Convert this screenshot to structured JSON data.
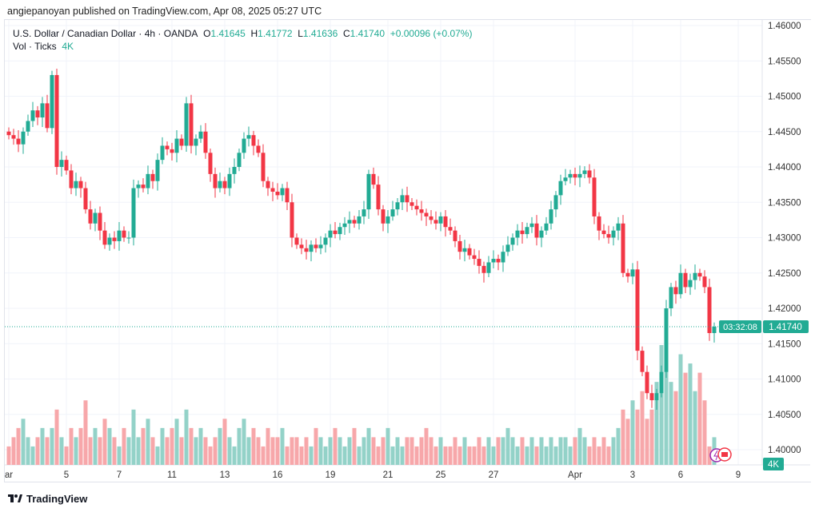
{
  "published": "angiepanoyan published on TradingView.com, Apr 08, 2025 05:27 UTC",
  "legend": {
    "symbol": "U.S. Dollar / Canadian Dollar · 4h · OANDA",
    "o_label": "O",
    "o": "1.41645",
    "h_label": "H",
    "h": "1.41772",
    "l_label": "L",
    "l": "1.41636",
    "c_label": "C",
    "c": "1.41740",
    "change": "+0.00096 (+0.07%)",
    "vol_label": "Vol · Ticks",
    "vol": "4K"
  },
  "last_price": {
    "price": "1.41740",
    "countdown": "03:32:08",
    "vol": "4K"
  },
  "footer": {
    "brand": "TradingView"
  },
  "colors": {
    "up": "#22ab94",
    "down": "#f23645",
    "up_vol": "#93d2c8",
    "down_vol": "#f7a7aa",
    "badge": "#22ab94"
  },
  "chart_data": {
    "type": "candlestick",
    "title": "U.S. Dollar / Canadian Dollar · 4h · OANDA",
    "ylim": [
      1.3975,
      1.4615
    ],
    "y_ticks": [
      "1.46000",
      "1.45500",
      "1.45000",
      "1.44500",
      "1.44000",
      "1.43500",
      "1.43000",
      "1.42500",
      "1.42000",
      "1.41500",
      "1.41000",
      "1.40500",
      "1.40000"
    ],
    "x_ticks": [
      {
        "label": "ar",
        "i": 0
      },
      {
        "label": "5",
        "i": 12
      },
      {
        "label": "7",
        "i": 23
      },
      {
        "label": "11",
        "i": 34
      },
      {
        "label": "13",
        "i": 45
      },
      {
        "label": "16",
        "i": 56
      },
      {
        "label": "19",
        "i": 67
      },
      {
        "label": "21",
        "i": 79
      },
      {
        "label": "25",
        "i": 90
      },
      {
        "label": "27",
        "i": 101
      },
      {
        "label": "Apr",
        "i": 118
      },
      {
        "label": "3",
        "i": 130
      },
      {
        "label": "6",
        "i": 140
      },
      {
        "label": "9",
        "i": 152
      }
    ],
    "closes": [
      1.4445,
      1.444,
      1.4432,
      1.445,
      1.4465,
      1.448,
      1.447,
      1.449,
      1.4455,
      1.453,
      1.44,
      1.441,
      1.4395,
      1.437,
      1.438,
      1.437,
      1.434,
      1.432,
      1.4335,
      1.431,
      1.429,
      1.43,
      1.4295,
      1.431,
      1.43,
      1.43,
      1.437,
      1.4375,
      1.437,
      1.439,
      1.438,
      1.441,
      1.443,
      1.4425,
      1.442,
      1.444,
      1.443,
      1.449,
      1.443,
      1.444,
      1.445,
      1.442,
      1.439,
      1.437,
      1.438,
      1.437,
      1.439,
      1.44,
      1.442,
      1.444,
      1.4445,
      1.443,
      1.442,
      1.438,
      1.437,
      1.4365,
      1.436,
      1.437,
      1.435,
      1.43,
      1.429,
      1.4285,
      1.428,
      1.429,
      1.4285,
      1.429,
      1.43,
      1.431,
      1.4305,
      1.4315,
      1.432,
      1.4325,
      1.432,
      1.433,
      1.434,
      1.439,
      1.4375,
      1.434,
      1.432,
      1.433,
      1.434,
      1.435,
      1.436,
      1.435,
      1.4345,
      1.434,
      1.4335,
      1.433,
      1.4325,
      1.432,
      1.433,
      1.4315,
      1.431,
      1.4295,
      1.428,
      1.4285,
      1.4275,
      1.427,
      1.426,
      1.425,
      1.4265,
      1.427,
      1.4265,
      1.428,
      1.429,
      1.43,
      1.431,
      1.4305,
      1.4315,
      1.432,
      1.43,
      1.431,
      1.432,
      1.434,
      1.436,
      1.438,
      1.4385,
      1.439,
      1.4385,
      1.439,
      1.4395,
      1.4385,
      1.433,
      1.431,
      1.4305,
      1.43,
      1.431,
      1.432,
      1.425,
      1.4245,
      1.4255,
      1.414,
      1.411,
      1.408,
      1.407,
      1.408,
      1.411,
      1.42,
      1.423,
      1.422,
      1.425,
      1.423,
      1.424,
      1.425,
      1.4245,
      1.423,
      1.4165,
      1.4174
    ],
    "first_open": 1.445,
    "volumes": [
      2,
      3,
      4,
      5,
      3,
      2,
      3,
      4,
      3,
      4,
      6,
      3,
      2,
      4,
      3,
      4,
      7,
      3,
      4,
      3,
      5,
      4,
      3,
      2,
      4,
      3,
      6,
      3,
      4,
      5,
      3,
      2,
      4,
      3,
      4,
      5,
      3,
      6,
      4,
      3,
      4,
      3,
      2,
      3,
      4,
      5,
      3,
      2,
      4,
      5,
      3,
      4,
      3,
      2,
      4,
      3,
      3,
      4,
      2,
      3,
      3,
      2,
      3,
      2,
      4,
      3,
      2,
      3,
      4,
      3,
      2,
      3,
      4,
      2,
      3,
      4,
      3,
      2,
      3,
      4,
      2,
      3,
      2,
      3,
      3,
      2,
      3,
      4,
      3,
      2,
      3,
      2,
      2,
      3,
      2,
      3,
      2,
      2,
      3,
      2,
      3,
      2,
      3,
      3,
      4,
      3,
      2,
      3,
      2,
      3,
      2,
      3,
      2,
      3,
      2,
      3,
      3,
      2,
      3,
      4,
      3,
      2,
      3,
      2,
      3,
      2,
      3,
      4,
      6,
      5,
      7,
      6,
      8,
      5,
      6,
      9,
      13,
      11,
      9,
      8,
      12,
      10,
      11,
      8,
      10,
      7,
      2,
      3
    ]
  }
}
